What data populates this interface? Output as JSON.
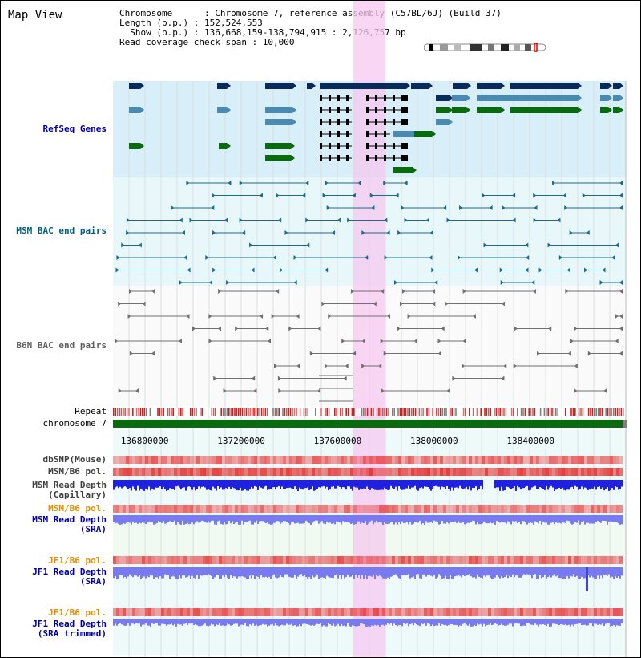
{
  "view": {
    "title": "Map View"
  },
  "info": {
    "chromosome_line": "Chromosome      : Chromosome 7, reference assembly (C57BL/6J) (Build 37)",
    "length_line": "Length (b.p.) : 152,524,553",
    "show_line": "  Show (b.p.) : 136,668,159-138,794,915 : 2,126,757 bp",
    "coverage_line": "Read coverage check span : 10,000"
  },
  "tracks": {
    "refseq": "RefSeq Genes",
    "msm_bac": "MSM BAC end pairs",
    "b6n_bac": "B6N BAC end pairs",
    "repeat": "Repeat",
    "chromosome": "chromosome 7",
    "dbsnp": "dbSNP(Mouse)",
    "msm_b6_pol_1": "MSM/B6 pol.",
    "msm_depth_cap_1": "MSM Read Depth",
    "msm_depth_cap_2": "(Capillary)",
    "msm_b6_pol_2": "MSM/B6 pol.",
    "msm_depth_sra_1": "MSM Read Depth",
    "msm_depth_sra_2": "(SRA)",
    "jf1_b6_pol_1": "JF1/B6 pol.",
    "jf1_depth_1": "JF1 Read Depth",
    "jf1_depth_2": "(SRA)",
    "jf1_b6_pol_2": "JF1/B6 pol.",
    "jf1_trim_1": "JF1 Read Depth",
    "jf1_trim_2": "(SRA trimmed)"
  },
  "axis": {
    "ticks": [
      {
        "label": "136800000",
        "value": 136800000
      },
      {
        "label": "137200000",
        "value": 137200000
      },
      {
        "label": "137600000",
        "value": 137600000
      },
      {
        "label": "138000000",
        "value": 138000000
      },
      {
        "label": "138400000",
        "value": 138400000
      }
    ]
  },
  "colors": {
    "refseq_bg": "#d8eef8",
    "bac_bg": "#e8f8fa",
    "gene_navy": "#0a2a5a",
    "gene_steel": "#4a8ab0",
    "gene_green": "#0a6a10",
    "highlight": "#f5c8f0",
    "depth_blue": "#2020e0",
    "depth_light": "#7a7af0",
    "pol_red": "#f07070",
    "label_blue": "#0000a0",
    "label_orange": "#e09000",
    "label_teal": "#006080"
  }
}
